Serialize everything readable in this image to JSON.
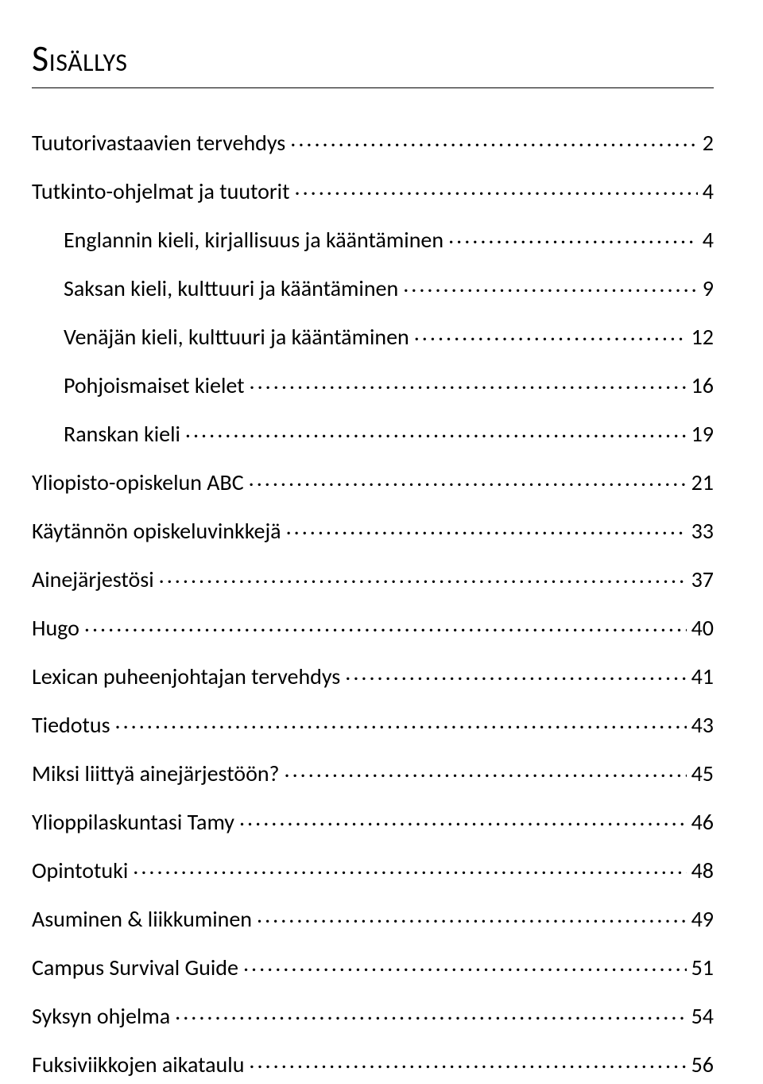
{
  "title": "Sisällys",
  "toc": [
    {
      "label": "Tuutorivastaavien tervehdys",
      "page": "2",
      "indent": false
    },
    {
      "label": "Tutkinto-ohjelmat ja tuutorit",
      "page": "4",
      "indent": false
    },
    {
      "label": "Englannin kieli, kirjallisuus ja kääntäminen",
      "page": "4",
      "indent": true
    },
    {
      "label": "Saksan kieli, kulttuuri ja kääntäminen",
      "page": "9",
      "indent": true
    },
    {
      "label": "Venäjän kieli, kulttuuri ja kääntäminen",
      "page": "12",
      "indent": true
    },
    {
      "label": "Pohjoismaiset kielet",
      "page": "16",
      "indent": true
    },
    {
      "label": "Ranskan kieli",
      "page": "19",
      "indent": true
    },
    {
      "label": "Yliopisto-opiskelun ABC",
      "page": "21",
      "indent": false
    },
    {
      "label": "Käytännön opiskeluvinkkejä",
      "page": "33",
      "indent": false
    },
    {
      "label": "Ainejärjestösi",
      "page": "37",
      "indent": false
    },
    {
      "label": "Hugo",
      "page": "40",
      "indent": false
    },
    {
      "label": "Lexican puheenjohtajan tervehdys",
      "page": "41",
      "indent": false
    },
    {
      "label": "Tiedotus",
      "page": "43",
      "indent": false
    },
    {
      "label": "Miksi liittyä ainejärjestöön?",
      "page": "45",
      "indent": false
    },
    {
      "label": "Ylioppilaskuntasi Tamy",
      "page": "46",
      "indent": false
    },
    {
      "label": "Opintotuki",
      "page": "48",
      "indent": false
    },
    {
      "label": "Asuminen & liikkuminen",
      "page": "49",
      "indent": false
    },
    {
      "label": "Campus Survival Guide",
      "page": "51",
      "indent": false
    },
    {
      "label": "Syksyn ohjelma",
      "page": "54",
      "indent": false
    },
    {
      "label": "Fuksiviikkojen aikataulu",
      "page": "56",
      "indent": false
    }
  ]
}
